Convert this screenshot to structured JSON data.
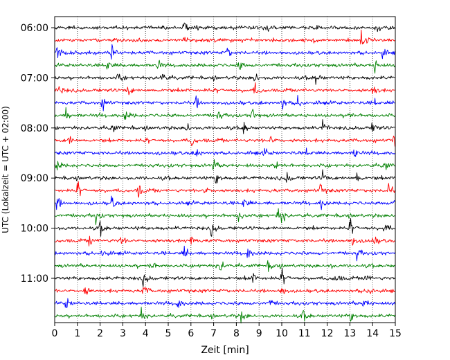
{
  "chart_data": {
    "type": "line",
    "title": "",
    "xlabel": "Zeit  [min]",
    "ylabel": "UTC (Lokalzeit = UTC + 02:00)",
    "xlim": [
      0,
      15
    ],
    "x_ticks": [
      0,
      1,
      2,
      3,
      4,
      5,
      6,
      7,
      8,
      9,
      10,
      11,
      12,
      13,
      14,
      15
    ],
    "x_tick_labels": [
      "0",
      "1",
      "2",
      "3",
      "4",
      "5",
      "6",
      "7",
      "8",
      "9",
      "10",
      "11",
      "12",
      "13",
      "14",
      "15"
    ],
    "y_ticks": [
      "06:00",
      "07:00",
      "08:00",
      "09:00",
      "10:00",
      "11:00"
    ],
    "rows_per_hour": 4,
    "first_row": "06:00",
    "last_row": "11:45",
    "y_direction": "downward",
    "vertical_grid": "dotted",
    "horizontal_grid": false,
    "legend": "none",
    "color_cycle": [
      "#000000",
      "#ff0000",
      "#0000ff",
      "#008000"
    ],
    "events_min": [
      [
        5.7,
        9.3,
        14.2
      ],
      [
        5.6,
        11.3,
        13.5
      ],
      [
        0.1,
        2.5,
        7.6,
        14.4
      ],
      [
        2.3,
        4.5,
        8.1,
        14.1
      ],
      [
        2.8,
        4.7,
        8.8,
        11.5
      ],
      [
        0.2,
        3.2,
        8.8,
        14.0
      ],
      [
        2.1,
        6.2,
        10.0,
        10.7,
        14.0
      ],
      [
        0.5,
        3.1,
        7.2,
        8.7,
        12.9
      ],
      [
        2.5,
        5.8,
        8.3,
        11.8,
        14.0
      ],
      [
        0.6,
        6.0,
        9.5,
        14.9
      ],
      [
        6.2,
        9.2,
        11.0,
        13.2
      ],
      [
        0.1,
        7.0,
        9.8,
        14.5
      ],
      [
        7.1,
        10.2,
        11.8,
        13.3
      ],
      [
        1.0,
        3.7,
        6.6,
        11.7,
        14.7
      ],
      [
        0.1,
        2.5,
        8.3,
        11.7,
        14.9
      ],
      [
        1.8,
        8.1,
        9.8,
        10.0
      ],
      [
        2.0,
        6.9,
        13.0,
        14.5
      ],
      [
        1.5,
        2.9,
        6.0,
        13.1,
        14.0
      ],
      [
        2.1,
        5.7,
        8.5,
        13.3
      ],
      [
        4.2,
        7.3,
        9.4,
        12.0
      ],
      [
        3.9,
        8.7,
        10.0,
        12.3,
        13.7
      ],
      [
        1.3,
        3.9,
        10.0,
        13.8
      ],
      [
        0.5,
        5.4,
        9.4,
        13.6
      ],
      [
        3.8,
        8.2,
        10.9,
        13.0
      ]
    ]
  }
}
